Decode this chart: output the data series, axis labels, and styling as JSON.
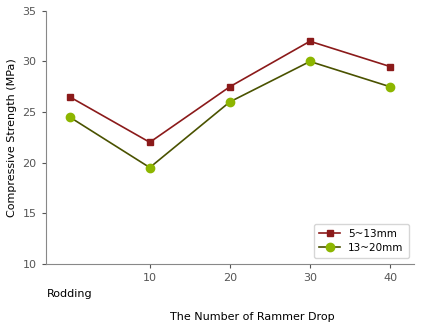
{
  "x_numeric": [
    0,
    10,
    20,
    30,
    40
  ],
  "x_tick_positions": [
    10,
    20,
    30,
    40
  ],
  "x_tick_labels": [
    "10",
    "20",
    "30",
    "40"
  ],
  "rodding_x": 0,
  "rodding_label": "Rodding",
  "series1_label": "5~13mm",
  "series1_y": [
    26.5,
    22.0,
    27.5,
    32.0,
    29.5
  ],
  "series1_color": "#8B1A1A",
  "series1_marker": "s",
  "series1_markersize": 5,
  "series2_label": "13~20mm",
  "series2_y": [
    24.5,
    19.5,
    26.0,
    30.0,
    27.5
  ],
  "series2_line_color": "#4A5200",
  "series2_marker": "o",
  "series2_markercolor": "#8DB600",
  "series2_markersize": 6,
  "ylabel": "Compressive Strength (MPa)",
  "xlabel": "The Number of Rammer Drop",
  "ylim": [
    10,
    35
  ],
  "yticks": [
    10,
    15,
    20,
    25,
    30,
    35
  ],
  "xlim": [
    -3,
    43
  ],
  "bg_color": "#ffffff",
  "legend_loc": "lower right",
  "title_color": "#aaaaaa"
}
